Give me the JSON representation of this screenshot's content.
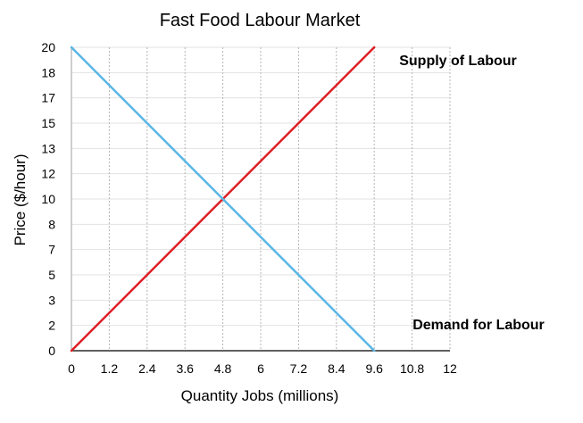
{
  "chart_data": {
    "type": "line",
    "title": "Fast Food Labour Market",
    "xlabel": "Quantity Jobs (millions)",
    "ylabel": "Price ($/hour)",
    "xlim": [
      0,
      12
    ],
    "ylim": [
      0,
      20
    ],
    "x_ticks": [
      "0",
      "1.2",
      "2.4",
      "3.6",
      "4.8",
      "6",
      "7.2",
      "8.4",
      "9.6",
      "10.8",
      "12"
    ],
    "y_ticks": [
      "0",
      "2",
      "3",
      "5",
      "7",
      "8",
      "10",
      "12",
      "13",
      "15",
      "17",
      "18",
      "20"
    ],
    "grid": true,
    "series": [
      {
        "name": "Supply of Labour",
        "color": "#dd1f26",
        "x": [
          0,
          9.6
        ],
        "y": [
          0,
          20
        ]
      },
      {
        "name": "Demand for Labour",
        "color": "#5ab6e6",
        "x": [
          0,
          9.6
        ],
        "y": [
          20,
          0
        ]
      }
    ]
  }
}
